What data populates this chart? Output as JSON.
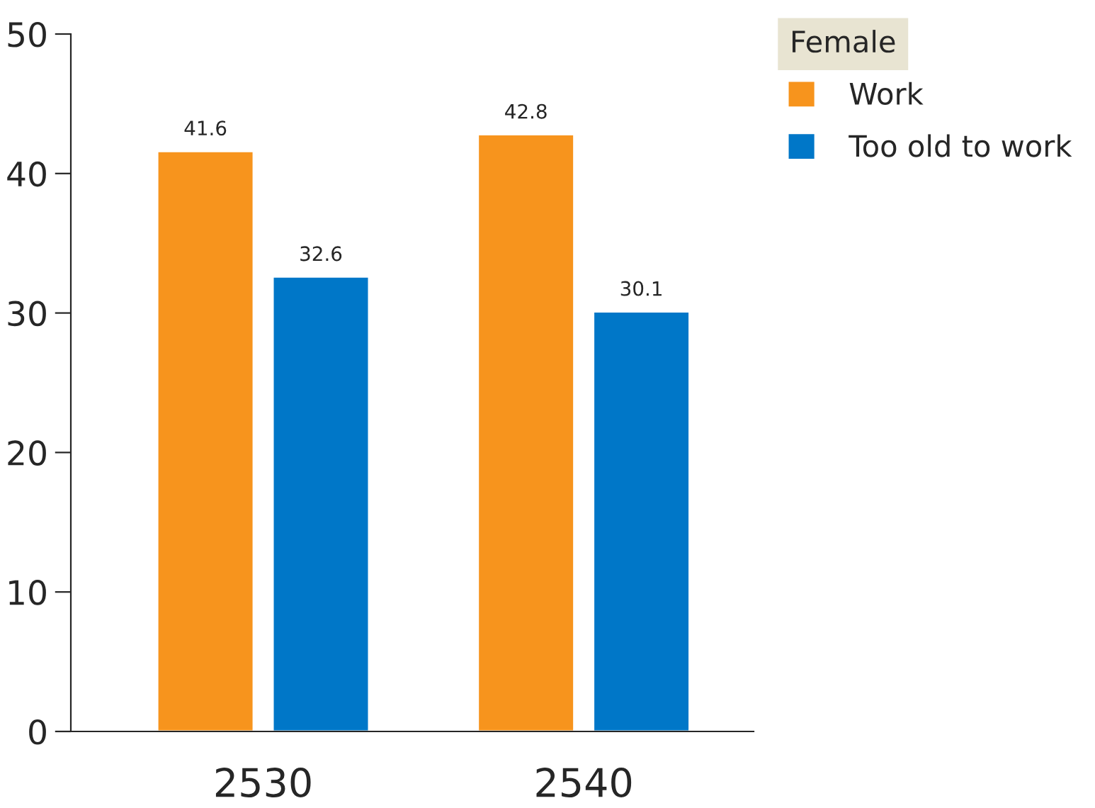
{
  "chart_data": {
    "type": "bar",
    "categories": [
      "2530",
      "2540"
    ],
    "series": [
      {
        "name": "Work",
        "color": "#f7941d",
        "values": [
          41.6,
          42.8
        ]
      },
      {
        "name": "Too old to work",
        "color": "#0077c8",
        "values": [
          32.6,
          30.1
        ]
      }
    ],
    "legend_title": "Female",
    "legend": "right",
    "data_labels": true,
    "grid": false,
    "ylim": [
      0,
      50
    ],
    "yticks": [
      0,
      10,
      20,
      30,
      40,
      50
    ]
  }
}
